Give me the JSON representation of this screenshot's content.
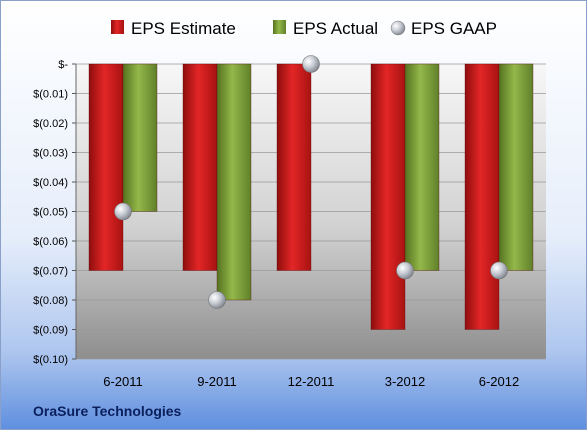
{
  "company": "OraSure Technologies",
  "chart_data": {
    "type": "bar",
    "categories": [
      "6-2011",
      "9-2011",
      "12-2011",
      "3-2012",
      "6-2012"
    ],
    "series": [
      {
        "name": "EPS Estimate",
        "kind": "bar",
        "color": "#cc1a1a",
        "values": [
          -0.07,
          -0.07,
          -0.07,
          -0.09,
          -0.09
        ]
      },
      {
        "name": "EPS Actual",
        "kind": "bar",
        "color": "#7fa03a",
        "values": [
          -0.05,
          -0.08,
          null,
          -0.07,
          -0.07
        ]
      },
      {
        "name": "EPS GAAP",
        "kind": "marker",
        "color": "#b8bcc4",
        "values": [
          -0.05,
          -0.08,
          0.0,
          -0.07,
          -0.07
        ]
      }
    ],
    "ylim": [
      -0.1,
      0
    ],
    "yticks": [
      0,
      -0.01,
      -0.02,
      -0.03,
      -0.04,
      -0.05,
      -0.06,
      -0.07,
      -0.08,
      -0.09,
      -0.1
    ],
    "ytick_labels": [
      "$-",
      "$(0.01)",
      "$(0.02)",
      "$(0.03)",
      "$(0.04)",
      "$(0.05)",
      "$(0.06)",
      "$(0.07)",
      "$(0.08)",
      "$(0.09)",
      "$(0.10)"
    ],
    "grid": true,
    "legend_position": "top"
  }
}
